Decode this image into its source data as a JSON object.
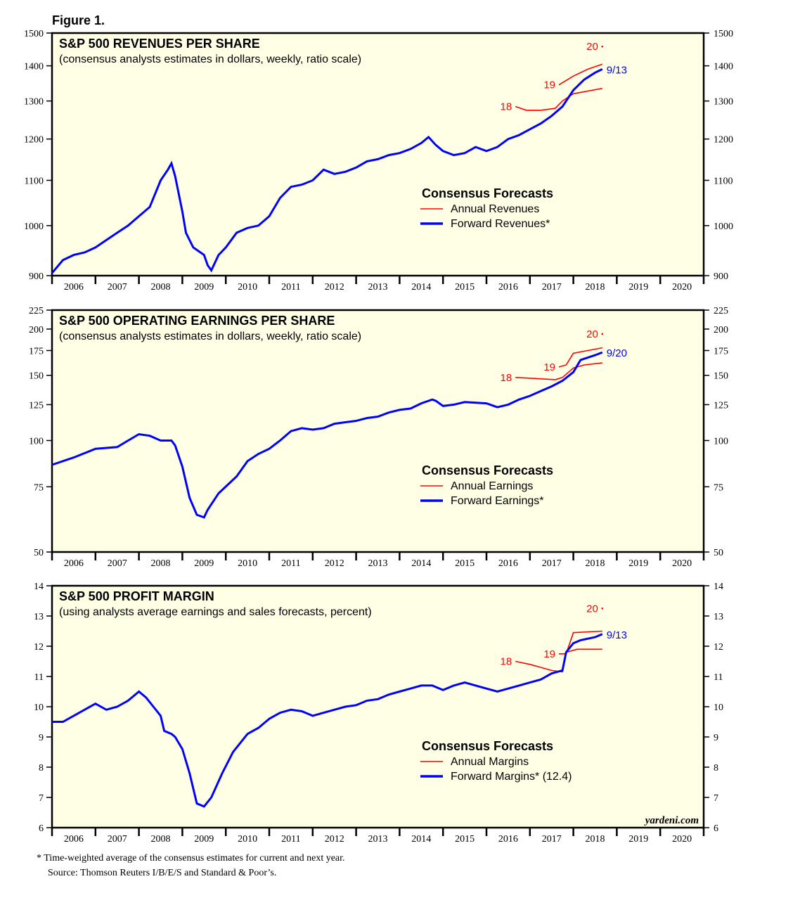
{
  "figure_title": "Figure 1.",
  "watermark": "yardeni.com",
  "footnotes": [
    "*  Time-weighted average of the consensus estimates for current and next year.",
    "Source: Thomson Reuters I/B/E/S and Standard & Poor’s."
  ],
  "colors": {
    "plot_bg": "#ffffe6",
    "annual": "#ff0000",
    "forward": "#0000ff"
  },
  "chart_data": [
    {
      "type": "line",
      "title": "S&P 500 REVENUES PER SHARE",
      "subtitle": "(consensus analysts estimates in dollars, weekly, ratio scale)",
      "yscale": "log",
      "ylim": [
        900,
        1500
      ],
      "yticks": [
        "900",
        "1000",
        "1100",
        "1200",
        "1300",
        "1400",
        "1500"
      ],
      "xlim": [
        "2006-01",
        "2021-01"
      ],
      "xticks": [
        "2006",
        "2007",
        "2008",
        "2009",
        "2010",
        "2011",
        "2012",
        "2013",
        "2014",
        "2015",
        "2016",
        "2017",
        "2018",
        "2019",
        "2020"
      ],
      "legend": {
        "title": "Consensus Forecasts",
        "items": [
          "Annual Revenues",
          "Forward Revenues*"
        ]
      },
      "forward_label": "9/13",
      "forward": [
        [
          "2006-01",
          905
        ],
        [
          "2006-04",
          930
        ],
        [
          "2006-07",
          940
        ],
        [
          "2006-10",
          945
        ],
        [
          "2007-01",
          955
        ],
        [
          "2007-04",
          970
        ],
        [
          "2007-07",
          985
        ],
        [
          "2007-10",
          1000
        ],
        [
          "2008-01",
          1020
        ],
        [
          "2008-04",
          1040
        ],
        [
          "2008-07",
          1100
        ],
        [
          "2008-09",
          1125
        ],
        [
          "2008-10",
          1140
        ],
        [
          "2008-11",
          1110
        ],
        [
          "2009-01",
          1030
        ],
        [
          "2009-02",
          985
        ],
        [
          "2009-04",
          955
        ],
        [
          "2009-07",
          940
        ],
        [
          "2009-08",
          920
        ],
        [
          "2009-09",
          910
        ],
        [
          "2009-11",
          940
        ],
        [
          "2010-01",
          955
        ],
        [
          "2010-04",
          985
        ],
        [
          "2010-07",
          995
        ],
        [
          "2010-10",
          1000
        ],
        [
          "2011-01",
          1020
        ],
        [
          "2011-04",
          1060
        ],
        [
          "2011-07",
          1085
        ],
        [
          "2011-10",
          1090
        ],
        [
          "2012-01",
          1100
        ],
        [
          "2012-04",
          1125
        ],
        [
          "2012-07",
          1115
        ],
        [
          "2012-10",
          1120
        ],
        [
          "2013-01",
          1130
        ],
        [
          "2013-04",
          1145
        ],
        [
          "2013-07",
          1150
        ],
        [
          "2013-10",
          1160
        ],
        [
          "2014-01",
          1165
        ],
        [
          "2014-04",
          1175
        ],
        [
          "2014-07",
          1190
        ],
        [
          "2014-09",
          1205
        ],
        [
          "2014-11",
          1185
        ],
        [
          "2015-01",
          1170
        ],
        [
          "2015-04",
          1160
        ],
        [
          "2015-07",
          1165
        ],
        [
          "2015-10",
          1180
        ],
        [
          "2016-01",
          1170
        ],
        [
          "2016-04",
          1180
        ],
        [
          "2016-07",
          1200
        ],
        [
          "2016-10",
          1210
        ],
        [
          "2017-01",
          1225
        ],
        [
          "2017-04",
          1240
        ],
        [
          "2017-07",
          1260
        ],
        [
          "2017-10",
          1285
        ],
        [
          "2018-01",
          1330
        ],
        [
          "2018-04",
          1360
        ],
        [
          "2018-07",
          1380
        ],
        [
          "2018-09",
          1390
        ]
      ],
      "annual": [
        {
          "label": "18",
          "points": [
            [
              "2016-09",
              1285
            ],
            [
              "2016-12",
              1275
            ],
            [
              "2017-04",
              1275
            ],
            [
              "2017-08",
              1280
            ],
            [
              "2017-10",
              1300
            ],
            [
              "2018-01",
              1320
            ],
            [
              "2018-09",
              1335
            ]
          ]
        },
        {
          "label": "19",
          "points": [
            [
              "2017-09",
              1345
            ],
            [
              "2018-01",
              1370
            ],
            [
              "2018-05",
              1390
            ],
            [
              "2018-09",
              1405
            ]
          ]
        },
        {
          "label": "20",
          "points": [
            [
              "2018-09",
              1458
            ]
          ]
        }
      ]
    },
    {
      "type": "line",
      "title": "S&P 500 OPERATING EARNINGS PER SHARE",
      "subtitle": "(consensus analysts estimates in dollars, weekly, ratio scale)",
      "yscale": "log",
      "ylim": [
        50,
        225
      ],
      "yticks": [
        "50",
        "75",
        "100",
        "125",
        "150",
        "175",
        "200",
        "225"
      ],
      "xlim": [
        "2006-01",
        "2021-01"
      ],
      "xticks": [
        "2006",
        "2007",
        "2008",
        "2009",
        "2010",
        "2011",
        "2012",
        "2013",
        "2014",
        "2015",
        "2016",
        "2017",
        "2018",
        "2019",
        "2020"
      ],
      "legend": {
        "title": "Consensus Forecasts",
        "items": [
          "Annual Earnings",
          "Forward Earnings*"
        ]
      },
      "forward_label": "9/20",
      "forward": [
        [
          "2006-01",
          86
        ],
        [
          "2006-07",
          90
        ],
        [
          "2007-01",
          95
        ],
        [
          "2007-07",
          96
        ],
        [
          "2007-10",
          100
        ],
        [
          "2008-01",
          104
        ],
        [
          "2008-04",
          103
        ],
        [
          "2008-07",
          100
        ],
        [
          "2008-10",
          100
        ],
        [
          "2008-11",
          97
        ],
        [
          "2009-01",
          85
        ],
        [
          "2009-03",
          70
        ],
        [
          "2009-05",
          63
        ],
        [
          "2009-07",
          62
        ],
        [
          "2009-08",
          65
        ],
        [
          "2009-11",
          72
        ],
        [
          "2010-04",
          80
        ],
        [
          "2010-07",
          88
        ],
        [
          "2010-10",
          92
        ],
        [
          "2011-01",
          95
        ],
        [
          "2011-04",
          100
        ],
        [
          "2011-07",
          106
        ],
        [
          "2011-10",
          108
        ],
        [
          "2012-01",
          107
        ],
        [
          "2012-04",
          108
        ],
        [
          "2012-07",
          111
        ],
        [
          "2012-10",
          112
        ],
        [
          "2013-01",
          113
        ],
        [
          "2013-04",
          115
        ],
        [
          "2013-07",
          116
        ],
        [
          "2013-10",
          119
        ],
        [
          "2014-01",
          121
        ],
        [
          "2014-04",
          122
        ],
        [
          "2014-07",
          126
        ],
        [
          "2014-10",
          129
        ],
        [
          "2014-11",
          128
        ],
        [
          "2015-01",
          124
        ],
        [
          "2015-04",
          125
        ],
        [
          "2015-07",
          127
        ],
        [
          "2016-01",
          126
        ],
        [
          "2016-04",
          123
        ],
        [
          "2016-07",
          125
        ],
        [
          "2016-10",
          129
        ],
        [
          "2017-01",
          132
        ],
        [
          "2017-04",
          136
        ],
        [
          "2017-07",
          140
        ],
        [
          "2017-10",
          145
        ],
        [
          "2018-01",
          153
        ],
        [
          "2018-03",
          165
        ],
        [
          "2018-07",
          170
        ],
        [
          "2018-09",
          173
        ]
      ],
      "annual": [
        {
          "label": "18",
          "points": [
            [
              "2016-09",
              148
            ],
            [
              "2017-03",
              147
            ],
            [
              "2017-08",
              146
            ],
            [
              "2017-10",
              148
            ],
            [
              "2018-01",
              157
            ],
            [
              "2018-04",
              160
            ],
            [
              "2018-09",
              162
            ]
          ]
        },
        {
          "label": "19",
          "points": [
            [
              "2017-09",
              158
            ],
            [
              "2017-11",
              160
            ],
            [
              "2018-01",
              172
            ],
            [
              "2018-09",
              178
            ]
          ]
        },
        {
          "label": "20",
          "points": [
            [
              "2018-09",
              194
            ]
          ]
        }
      ]
    },
    {
      "type": "line",
      "title": "S&P 500 PROFIT MARGIN",
      "subtitle": "(using analysts average earnings and sales forecasts, percent)",
      "yscale": "linear",
      "ylim": [
        6,
        14
      ],
      "yticks": [
        "6",
        "7",
        "8",
        "9",
        "10",
        "11",
        "12",
        "13",
        "14"
      ],
      "xlim": [
        "2006-01",
        "2021-01"
      ],
      "xticks": [
        "2006",
        "2007",
        "2008",
        "2009",
        "2010",
        "2011",
        "2012",
        "2013",
        "2014",
        "2015",
        "2016",
        "2017",
        "2018",
        "2019",
        "2020"
      ],
      "legend": {
        "title": "Consensus Forecasts",
        "items": [
          "Annual Margins",
          "Forward Margins* (12.4)"
        ]
      },
      "forward_label": "9/13",
      "forward": [
        [
          "2006-01",
          9.5
        ],
        [
          "2006-04",
          9.5
        ],
        [
          "2006-07",
          9.7
        ],
        [
          "2006-10",
          9.9
        ],
        [
          "2007-01",
          10.1
        ],
        [
          "2007-04",
          9.9
        ],
        [
          "2007-07",
          10.0
        ],
        [
          "2007-10",
          10.2
        ],
        [
          "2008-01",
          10.5
        ],
        [
          "2008-03",
          10.3
        ],
        [
          "2008-05",
          10.0
        ],
        [
          "2008-07",
          9.7
        ],
        [
          "2008-08",
          9.2
        ],
        [
          "2008-10",
          9.1
        ],
        [
          "2008-11",
          9.0
        ],
        [
          "2009-01",
          8.6
        ],
        [
          "2009-03",
          7.8
        ],
        [
          "2009-05",
          6.8
        ],
        [
          "2009-07",
          6.7
        ],
        [
          "2009-09",
          7.0
        ],
        [
          "2009-12",
          7.8
        ],
        [
          "2010-03",
          8.5
        ],
        [
          "2010-07",
          9.1
        ],
        [
          "2010-10",
          9.3
        ],
        [
          "2011-01",
          9.6
        ],
        [
          "2011-04",
          9.8
        ],
        [
          "2011-07",
          9.9
        ],
        [
          "2011-10",
          9.85
        ],
        [
          "2012-01",
          9.7
        ],
        [
          "2012-04",
          9.8
        ],
        [
          "2012-07",
          9.9
        ],
        [
          "2012-10",
          10.0
        ],
        [
          "2013-01",
          10.05
        ],
        [
          "2013-04",
          10.2
        ],
        [
          "2013-07",
          10.25
        ],
        [
          "2013-10",
          10.4
        ],
        [
          "2014-01",
          10.5
        ],
        [
          "2014-04",
          10.6
        ],
        [
          "2014-07",
          10.7
        ],
        [
          "2014-10",
          10.7
        ],
        [
          "2015-01",
          10.55
        ],
        [
          "2015-04",
          10.7
        ],
        [
          "2015-07",
          10.8
        ],
        [
          "2015-10",
          10.7
        ],
        [
          "2016-01",
          10.6
        ],
        [
          "2016-04",
          10.5
        ],
        [
          "2016-07",
          10.6
        ],
        [
          "2016-10",
          10.7
        ],
        [
          "2017-01",
          10.8
        ],
        [
          "2017-04",
          10.9
        ],
        [
          "2017-07",
          11.1
        ],
        [
          "2017-10",
          11.2
        ],
        [
          "2017-11",
          11.8
        ],
        [
          "2018-01",
          12.1
        ],
        [
          "2018-03",
          12.2
        ],
        [
          "2018-07",
          12.3
        ],
        [
          "2018-09",
          12.4
        ]
      ],
      "annual": [
        {
          "label": "18",
          "points": [
            [
              "2016-09",
              11.5
            ],
            [
              "2017-01",
              11.4
            ],
            [
              "2017-07",
              11.2
            ],
            [
              "2017-10",
              11.15
            ],
            [
              "2017-11",
              11.8
            ],
            [
              "2018-02",
              11.9
            ],
            [
              "2018-09",
              11.9
            ]
          ]
        },
        {
          "label": "19",
          "points": [
            [
              "2017-09",
              11.75
            ],
            [
              "2017-11",
              11.75
            ],
            [
              "2018-01",
              12.45
            ],
            [
              "2018-09",
              12.5
            ]
          ]
        },
        {
          "label": "20",
          "points": [
            [
              "2018-09",
              13.25
            ]
          ]
        }
      ]
    }
  ]
}
